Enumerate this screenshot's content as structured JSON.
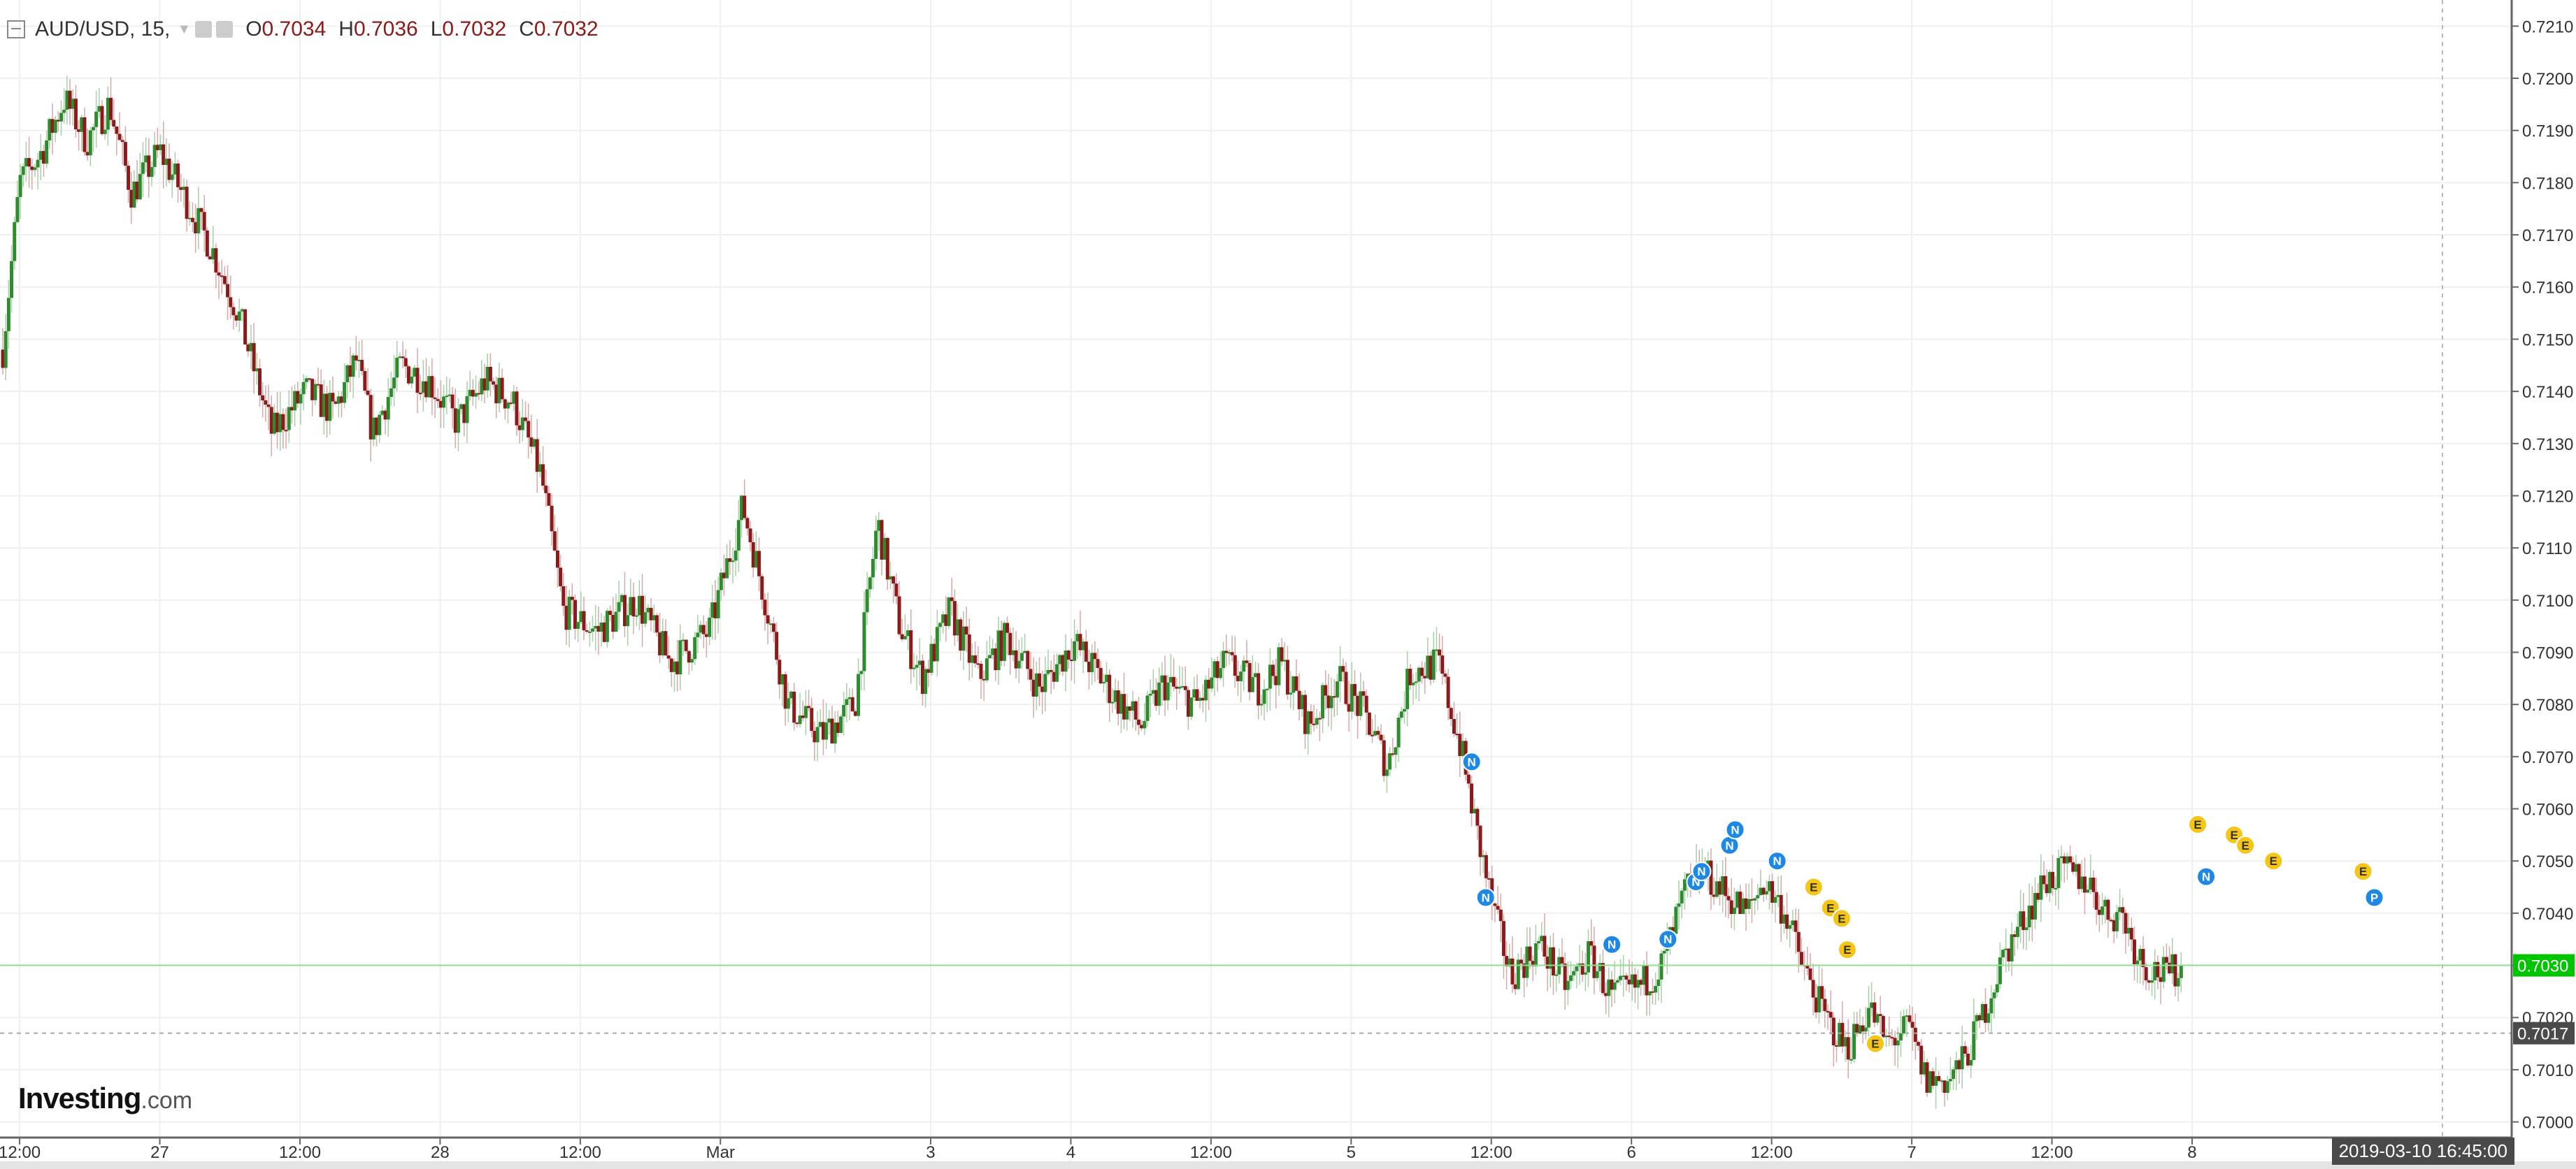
{
  "header": {
    "symbol": "AUD/USD, 15,",
    "open_label": "O",
    "open": "0.7034",
    "high_label": "H",
    "high": "0.7036",
    "low_label": "L",
    "low": "0.7032",
    "close_label": "C",
    "close": "0.7032"
  },
  "logo": {
    "brand": "Investing",
    "suffix": ".com"
  },
  "crosshair_date": "2019-03-10 16:45:00",
  "colors": {
    "up": "#2e8b2e",
    "down": "#8b1a1a",
    "last_price": "#00c400",
    "grid": "#f0f0f0"
  },
  "chart_data": {
    "type": "candlestick",
    "title": "AUD/USD, 15,",
    "y_range": [
      0.6997,
      0.7215
    ],
    "y_ticks": [
      "0.7000",
      "0.7010",
      "0.7020",
      "0.7030",
      "0.7040",
      "0.7050",
      "0.7060",
      "0.7070",
      "0.7080",
      "0.7090",
      "0.7100",
      "0.7110",
      "0.7120",
      "0.7130",
      "0.7140",
      "0.7150",
      "0.7160",
      "0.7170",
      "0.7180",
      "0.7190",
      "0.7200",
      "0.7210"
    ],
    "x_labels": [
      {
        "label": "12:00",
        "t": 0.5
      },
      {
        "label": "27",
        "t": 1.0
      },
      {
        "label": "12:00",
        "t": 1.5
      },
      {
        "label": "28",
        "t": 2.0
      },
      {
        "label": "12:00",
        "t": 2.5
      },
      {
        "label": "Mar",
        "t": 3.0
      },
      {
        "label": "3",
        "t": 3.75
      },
      {
        "label": "4",
        "t": 4.25
      },
      {
        "label": "12:00",
        "t": 4.75
      },
      {
        "label": "5",
        "t": 5.25
      },
      {
        "label": "12:00",
        "t": 5.75
      },
      {
        "label": "6",
        "t": 6.25
      },
      {
        "label": "12:00",
        "t": 6.75
      },
      {
        "label": "7",
        "t": 7.25
      },
      {
        "label": "12:00",
        "t": 7.75
      },
      {
        "label": "8",
        "t": 8.25
      }
    ],
    "t_range": [
      0.43,
      9.39
    ],
    "price_path": [
      [
        0.44,
        0.7148
      ],
      [
        0.5,
        0.718
      ],
      [
        0.58,
        0.7186
      ],
      [
        0.66,
        0.7196
      ],
      [
        0.74,
        0.7188
      ],
      [
        0.82,
        0.7195
      ],
      [
        0.9,
        0.7178
      ],
      [
        1.0,
        0.7186
      ],
      [
        1.08,
        0.7178
      ],
      [
        1.18,
        0.7168
      ],
      [
        1.28,
        0.7155
      ],
      [
        1.4,
        0.7132
      ],
      [
        1.52,
        0.714
      ],
      [
        1.62,
        0.7136
      ],
      [
        1.7,
        0.7146
      ],
      [
        1.76,
        0.7132
      ],
      [
        1.86,
        0.7145
      ],
      [
        1.96,
        0.7142
      ],
      [
        2.06,
        0.7134
      ],
      [
        2.16,
        0.7142
      ],
      [
        2.26,
        0.7138
      ],
      [
        2.36,
        0.7124
      ],
      [
        2.44,
        0.7098
      ],
      [
        2.56,
        0.7094
      ],
      [
        2.7,
        0.71
      ],
      [
        2.82,
        0.7088
      ],
      [
        2.96,
        0.7094
      ],
      [
        3.08,
        0.7118
      ],
      [
        3.16,
        0.71
      ],
      [
        3.24,
        0.708
      ],
      [
        3.36,
        0.7074
      ],
      [
        3.48,
        0.708
      ],
      [
        3.56,
        0.7115
      ],
      [
        3.64,
        0.7095
      ],
      [
        3.72,
        0.7085
      ],
      [
        3.82,
        0.7098
      ],
      [
        3.92,
        0.7085
      ],
      [
        4.02,
        0.7093
      ],
      [
        4.14,
        0.7083
      ],
      [
        4.26,
        0.7092
      ],
      [
        4.4,
        0.7082
      ],
      [
        4.5,
        0.7076
      ],
      [
        4.58,
        0.7084
      ],
      [
        4.7,
        0.708
      ],
      [
        4.8,
        0.7088
      ],
      [
        4.92,
        0.7083
      ],
      [
        5.0,
        0.7088
      ],
      [
        5.1,
        0.7076
      ],
      [
        5.2,
        0.7085
      ],
      [
        5.3,
        0.7078
      ],
      [
        5.38,
        0.7068
      ],
      [
        5.46,
        0.7086
      ],
      [
        5.56,
        0.7088
      ],
      [
        5.64,
        0.7072
      ],
      [
        5.7,
        0.7055
      ],
      [
        5.76,
        0.704
      ],
      [
        5.82,
        0.7028
      ],
      [
        5.92,
        0.7034
      ],
      [
        6.02,
        0.7026
      ],
      [
        6.1,
        0.7032
      ],
      [
        6.18,
        0.7024
      ],
      [
        6.28,
        0.7026
      ],
      [
        6.36,
        0.703
      ],
      [
        6.44,
        0.7044
      ],
      [
        6.5,
        0.7048
      ],
      [
        6.58,
        0.7044
      ],
      [
        6.66,
        0.704
      ],
      [
        6.72,
        0.7046
      ],
      [
        6.8,
        0.704
      ],
      [
        6.86,
        0.703
      ],
      [
        6.94,
        0.702
      ],
      [
        7.02,
        0.7014
      ],
      [
        7.1,
        0.7022
      ],
      [
        7.16,
        0.7015
      ],
      [
        7.24,
        0.7018
      ],
      [
        7.3,
        0.7008
      ],
      [
        7.38,
        0.7008
      ],
      [
        7.44,
        0.7012
      ],
      [
        7.5,
        0.702
      ],
      [
        7.58,
        0.7032
      ],
      [
        7.66,
        0.704
      ],
      [
        7.72,
        0.7046
      ],
      [
        7.8,
        0.7048
      ],
      [
        7.88,
        0.7046
      ],
      [
        7.94,
        0.704
      ],
      [
        8.0,
        0.704
      ],
      [
        8.04,
        0.7034
      ],
      [
        8.08,
        0.703
      ],
      [
        8.16,
        0.7028
      ],
      [
        8.22,
        0.703
      ]
    ],
    "last_price": "0.7030",
    "crosshair_price": "0.7017",
    "event_markers": [
      {
        "label": "N",
        "t": 5.68,
        "y": 0.7069
      },
      {
        "label": "N",
        "t": 5.73,
        "y": 0.7043
      },
      {
        "label": "N",
        "t": 6.18,
        "y": 0.7034
      },
      {
        "label": "N",
        "t": 6.38,
        "y": 0.7035
      },
      {
        "label": "N",
        "t": 6.48,
        "y": 0.7046
      },
      {
        "label": "N",
        "t": 6.5,
        "y": 0.7048
      },
      {
        "label": "N",
        "t": 6.6,
        "y": 0.7053
      },
      {
        "label": "N",
        "t": 6.62,
        "y": 0.7056
      },
      {
        "label": "N",
        "t": 6.77,
        "y": 0.705
      },
      {
        "label": "E",
        "t": 6.9,
        "y": 0.7045
      },
      {
        "label": "E",
        "t": 6.96,
        "y": 0.7041
      },
      {
        "label": "E",
        "t": 7.0,
        "y": 0.7039
      },
      {
        "label": "E",
        "t": 7.02,
        "y": 0.7033
      },
      {
        "label": "E",
        "t": 7.12,
        "y": 0.7015
      },
      {
        "label": "N",
        "t": 8.3,
        "y": 0.7047
      },
      {
        "label": "E",
        "t": 8.27,
        "y": 0.7057
      },
      {
        "label": "E",
        "t": 8.4,
        "y": 0.7055
      },
      {
        "label": "E",
        "t": 8.44,
        "y": 0.7053
      },
      {
        "label": "E",
        "t": 8.54,
        "y": 0.705
      },
      {
        "label": "E",
        "t": 8.86,
        "y": 0.7048
      },
      {
        "label": "P",
        "t": 8.9,
        "y": 0.7043
      }
    ]
  }
}
